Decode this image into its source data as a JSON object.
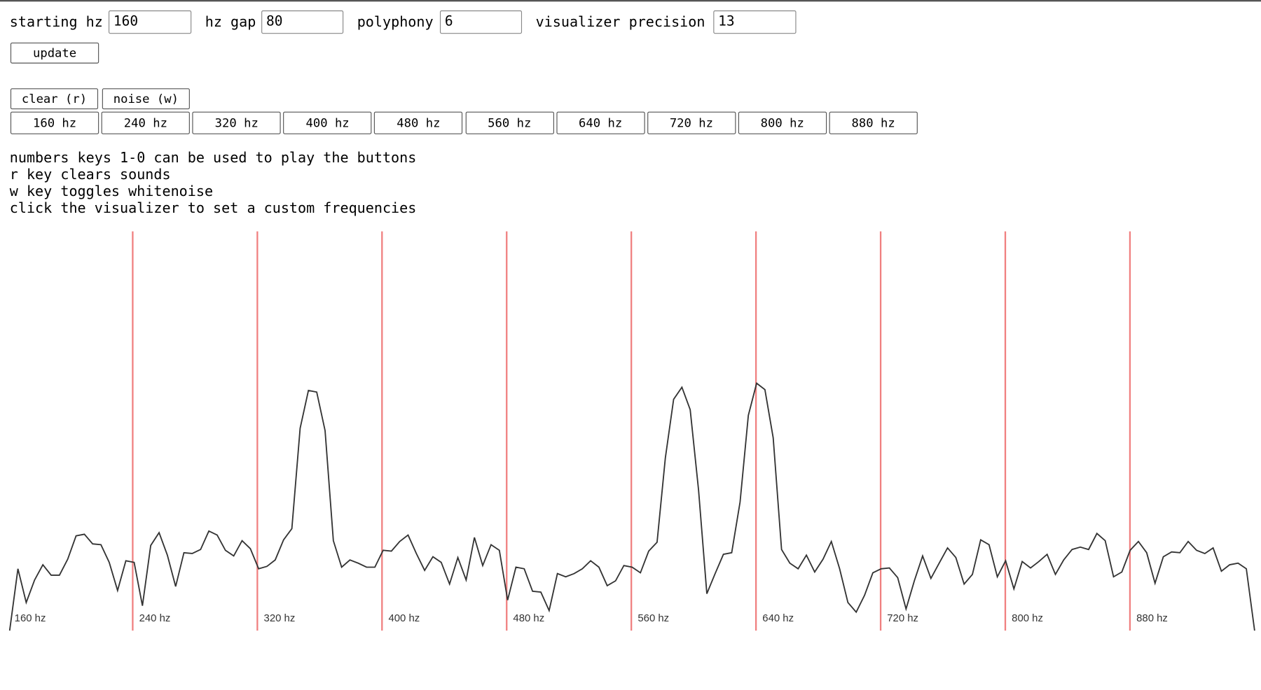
{
  "settings": [
    {
      "label": "starting hz",
      "value": "160"
    },
    {
      "label": "hz gap",
      "value": "80"
    },
    {
      "label": "polyphony",
      "value": "6"
    },
    {
      "label": "visualizer precision",
      "value": "13"
    }
  ],
  "update_button": "update",
  "control_buttons": [
    "clear (r)",
    "noise (w)"
  ],
  "tone_buttons": [
    "160 hz",
    "240 hz",
    "320 hz",
    "400 hz",
    "480 hz",
    "560 hz",
    "640 hz",
    "720 hz",
    "800 hz",
    "880 hz"
  ],
  "instructions": [
    "numbers keys 1-0 can be used to play the buttons",
    "r key clears sounds",
    "w key toggles whitenoise",
    "click the visualizer to set a custom frequencies"
  ],
  "visualizer": {
    "markers": [
      "160 hz",
      "240 hz",
      "320 hz",
      "400 hz",
      "480 hz",
      "560 hz",
      "640 hz",
      "720 hz",
      "800 hz",
      "880 hz"
    ],
    "spectrum": [
      0,
      77,
      35,
      63,
      82,
      69,
      69,
      89,
      118,
      120,
      108,
      107,
      85,
      50,
      87,
      85,
      31,
      106,
      122,
      94,
      55,
      97,
      96,
      101,
      124,
      119,
      100,
      93,
      112,
      102,
      77,
      80,
      88,
      113,
      127,
      252,
      299,
      297,
      249,
      112,
      79,
      88,
      84,
      79,
      79,
      100,
      99,
      111,
      119,
      96,
      75,
      92,
      85,
      58,
      91,
      63,
      116,
      81,
      107,
      100,
      38,
      79,
      77,
      49,
      48,
      25,
      71,
      67,
      71,
      77,
      87,
      79,
      56,
      62,
      81,
      79,
      72,
      99,
      110,
      215,
      288,
      303,
      275,
      175,
      46,
      71,
      95,
      97,
      160,
      268,
      308,
      300,
      240,
      101,
      84,
      77,
      94,
      73,
      89,
      111,
      77,
      35,
      23,
      44,
      72,
      77,
      78,
      66,
      27,
      62,
      93,
      65,
      84,
      103,
      91,
      58,
      70,
      113,
      107,
      67,
      87,
      52,
      86,
      78,
      86,
      95,
      70,
      88,
      101,
      104,
      101,
      121,
      112,
      67,
      73,
      100,
      111,
      97,
      59,
      92,
      98,
      97,
      111,
      100,
      96,
      103,
      74,
      82,
      84,
      77,
      0
    ]
  }
}
